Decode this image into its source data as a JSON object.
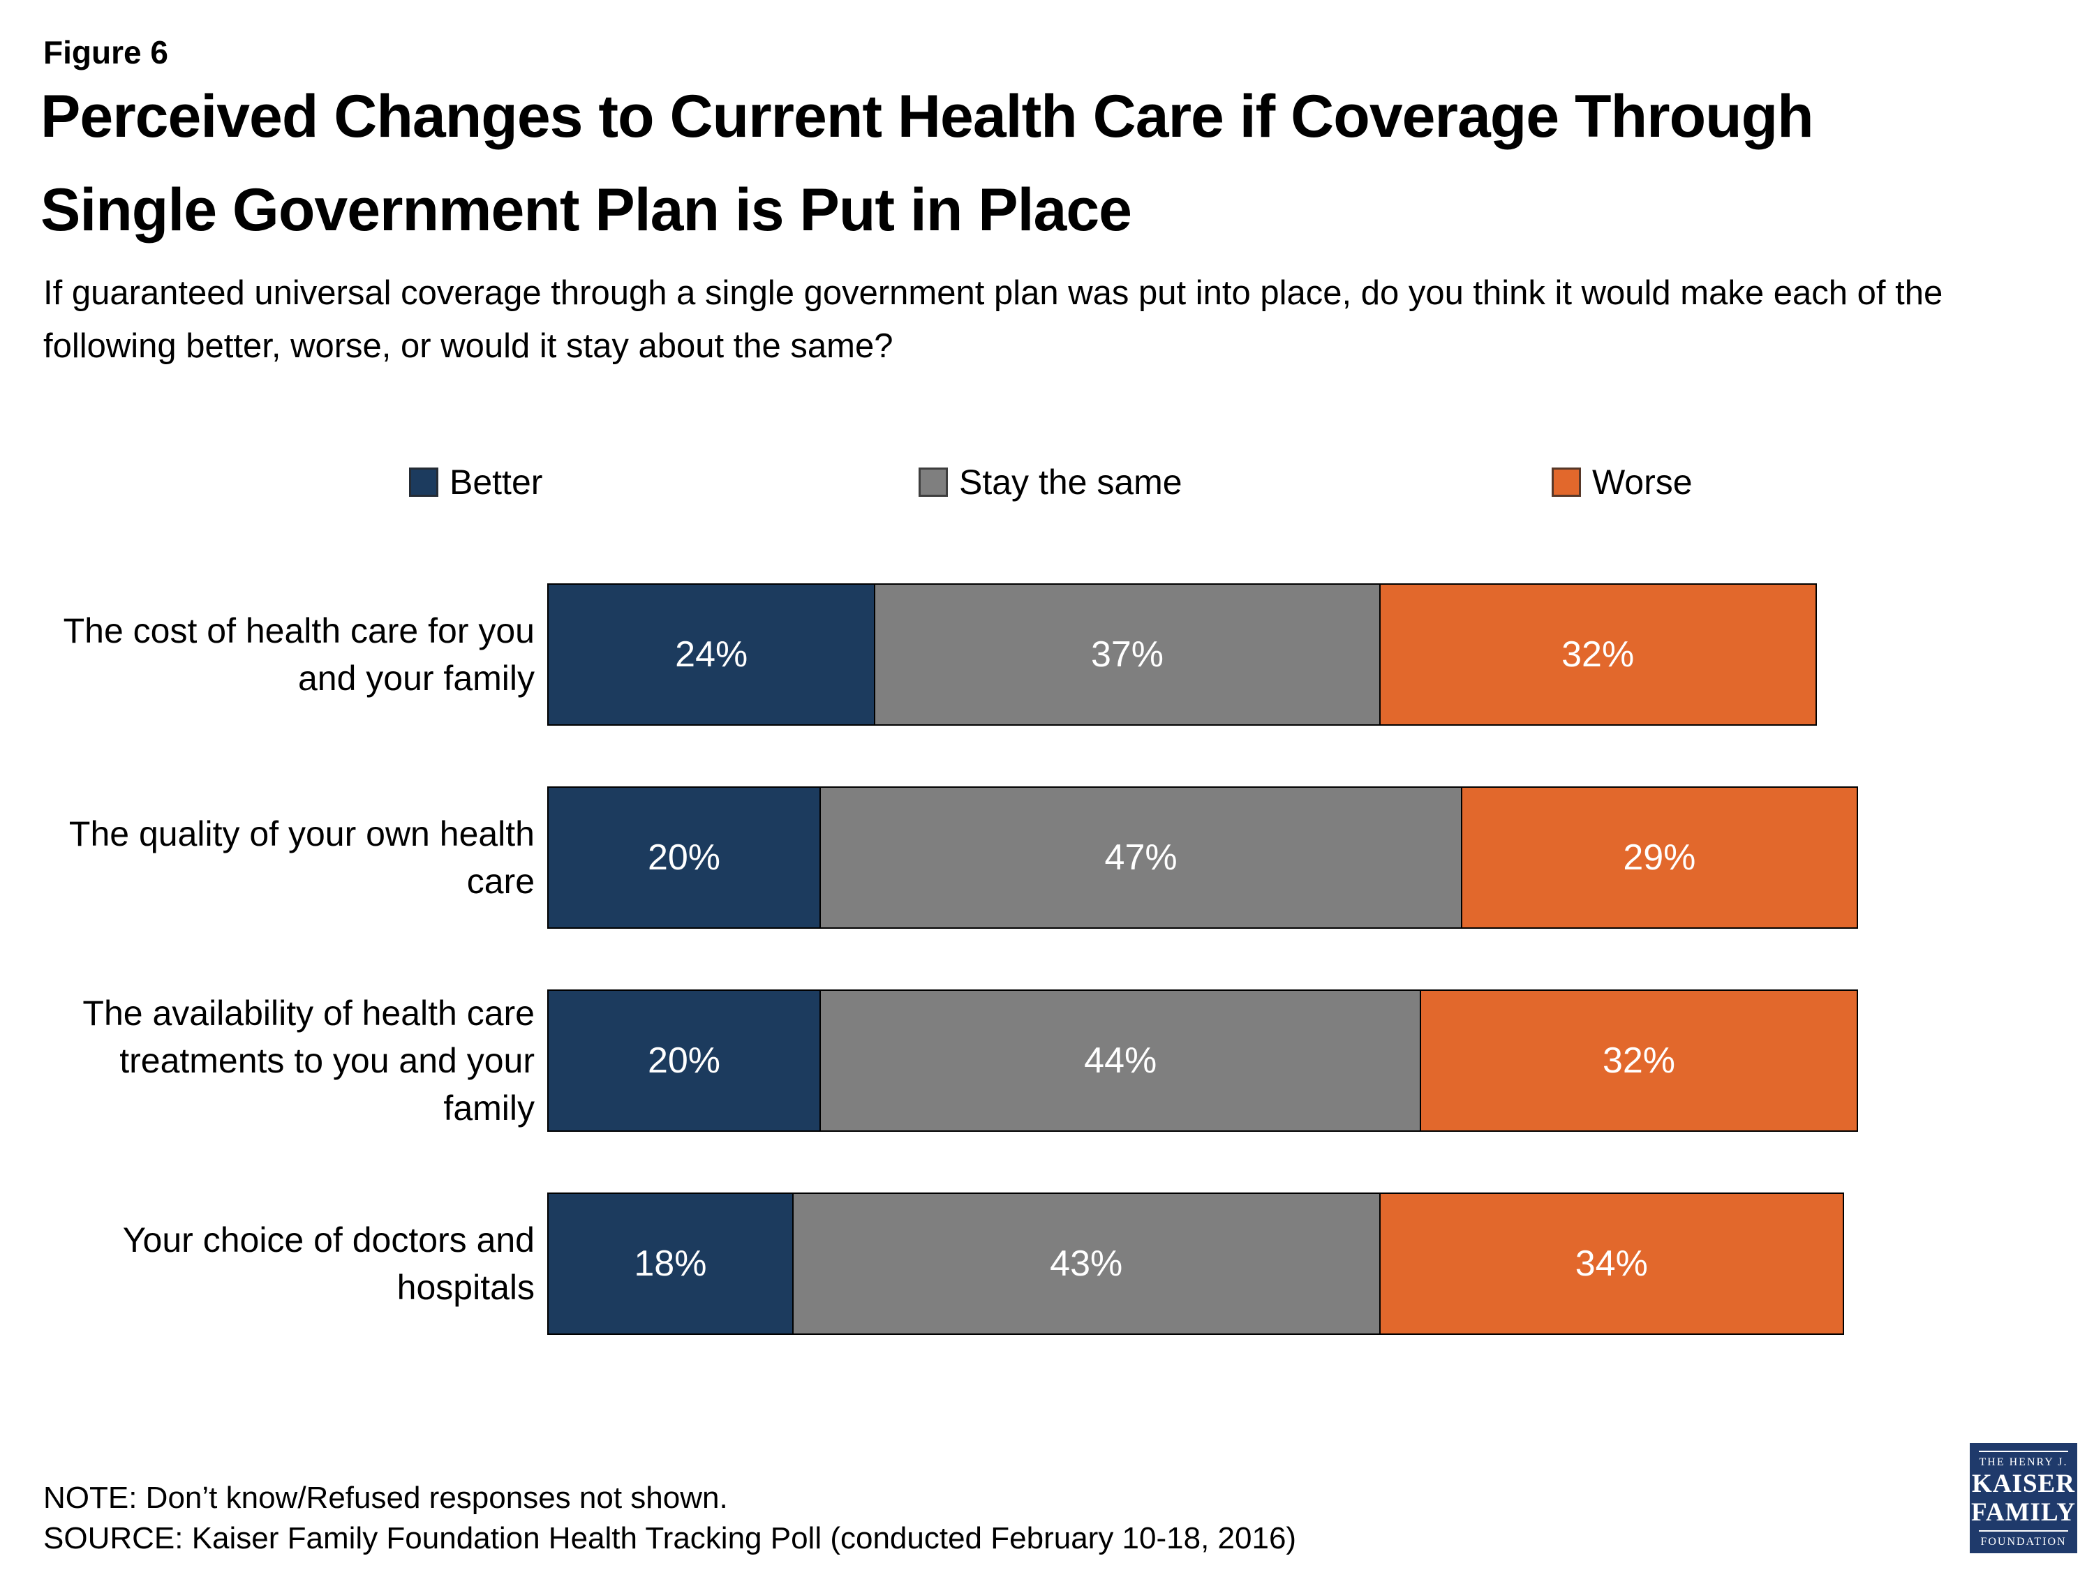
{
  "figure_label": "Figure 6",
  "title": {
    "line1": "Perceived Changes to Current Health Care if Coverage Through",
    "line2": "Single Government Plan is Put in Place"
  },
  "subtitle": "If guaranteed universal coverage through a single government plan was put into place, do you think it would make each of the following better, worse, or would it stay about the same?",
  "legend": [
    {
      "label": "Better",
      "color": "#1c3b5e"
    },
    {
      "label": "Stay the same",
      "color": "#7f7f7f"
    },
    {
      "label": "Worse",
      "color": "#e2682c"
    }
  ],
  "chart_data": {
    "type": "bar",
    "orientation": "horizontal_stacked",
    "unit": "percent",
    "value_suffix": "%",
    "xlim": [
      0,
      100
    ],
    "legend_position": "top",
    "value_labels": "inside_white",
    "categories": [
      "The cost of health care for you and your family",
      "The quality of your own health care",
      "The availability of health care treatments to you and your family",
      "Your choice of doctors and hospitals"
    ],
    "series": [
      {
        "name": "Better",
        "color": "#1c3b5e",
        "values": [
          24,
          20,
          20,
          18
        ]
      },
      {
        "name": "Stay the same",
        "color": "#7f7f7f",
        "values": [
          37,
          47,
          44,
          43
        ]
      },
      {
        "name": "Worse",
        "color": "#e2682c",
        "values": [
          32,
          29,
          32,
          34
        ]
      }
    ]
  },
  "note": "NOTE: Don’t know/Refused responses not shown.",
  "source": "SOURCE: Kaiser Family Foundation Health Tracking Poll (conducted February 10-18, 2016)",
  "logo": {
    "top": "THE HENRY J.",
    "name1": "KAISER",
    "name2": "FAMILY",
    "bottom": "FOUNDATION",
    "color": "#1f3a6b"
  }
}
